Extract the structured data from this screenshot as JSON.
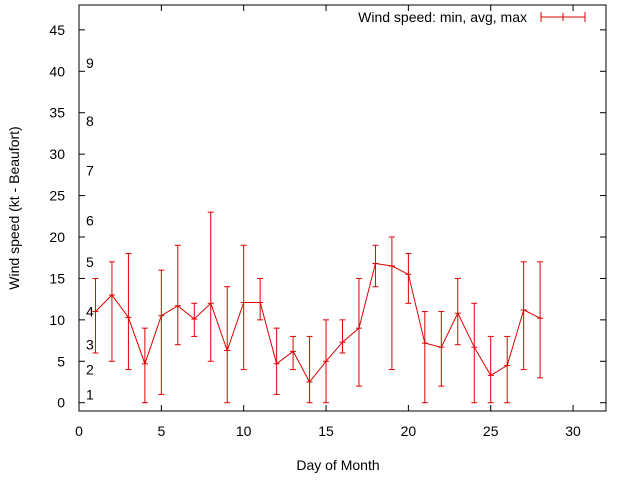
{
  "chart_data": {
    "type": "line",
    "title": "",
    "xlabel": "Day of Month",
    "ylabel": "Wind speed (kt - Beaufort)",
    "xlim": [
      0,
      32
    ],
    "ylim": [
      -1,
      48
    ],
    "xticks": [
      0,
      5,
      10,
      15,
      20,
      25,
      30
    ],
    "yticks": [
      0,
      5,
      10,
      15,
      20,
      25,
      30,
      35,
      40,
      45
    ],
    "legend": "Wind speed: min, avg, max",
    "legend_position": "top-right",
    "series_color": "#dd0000",
    "beaufort_scale": [
      {
        "label": "1",
        "kt": 1
      },
      {
        "label": "2",
        "kt": 4
      },
      {
        "label": "3",
        "kt": 7
      },
      {
        "label": "4",
        "kt": 11
      },
      {
        "label": "5",
        "kt": 17
      },
      {
        "label": "6",
        "kt": 22
      },
      {
        "label": "7",
        "kt": 28
      },
      {
        "label": "8",
        "kt": 34
      },
      {
        "label": "9",
        "kt": 41
      }
    ],
    "series": [
      {
        "name": "Wind speed: min, avg, max",
        "x": [
          1,
          2,
          3,
          4,
          5,
          6,
          7,
          8,
          9,
          10,
          11,
          12,
          13,
          14,
          15,
          16,
          17,
          18,
          19,
          20,
          21,
          22,
          23,
          24,
          25,
          26,
          27,
          28
        ],
        "avg": [
          11,
          13,
          10.3,
          4.7,
          10.5,
          11.7,
          10.1,
          12,
          6.3,
          12.1,
          12.1,
          4.7,
          6.2,
          2.5,
          5,
          7.3,
          9,
          16.8,
          16.5,
          15.5,
          7.2,
          6.7,
          10.8,
          6.7,
          3.3,
          4.5,
          11.2,
          10.2
        ],
        "min": [
          6,
          5,
          4,
          0,
          1,
          7,
          8,
          5,
          0,
          4,
          10,
          1,
          4,
          0,
          0,
          6,
          2,
          14,
          4,
          12,
          0,
          2,
          7,
          0,
          0,
          0,
          4,
          3
        ],
        "max": [
          15,
          17,
          18,
          9,
          16,
          19,
          12,
          23,
          14,
          19,
          15,
          9,
          8,
          8,
          10,
          10,
          15,
          19,
          20,
          18,
          11,
          11,
          15,
          12,
          8,
          8,
          17,
          17
        ]
      }
    ]
  }
}
